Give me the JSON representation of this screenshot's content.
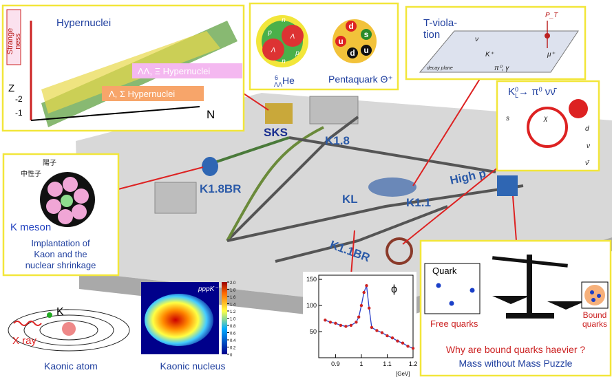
{
  "hypernuclei": {
    "title": "Hypernuclei",
    "axis_y": [
      "Strange",
      "ness"
    ],
    "labels": [
      "ΛΛ, Ξ Hypernuclei",
      "Λ, Σ Hypernuclei"
    ],
    "axis_z": "Z",
    "axis_n": "N",
    "ticks": [
      -1,
      -2
    ]
  },
  "nuclei": {
    "helium": {
      "mass": 6,
      "sub": "ΛΛ",
      "symbol": "He"
    },
    "helium_parts": [
      "p",
      "n",
      "Λ",
      "Λ",
      "p",
      "n"
    ],
    "pentaquark": "Pentaquark Θ⁺",
    "pentaquark_parts": [
      "d",
      "s",
      "u",
      "d",
      "u"
    ]
  },
  "t_violation": {
    "title": [
      "T-viola-",
      "tion"
    ],
    "labels": [
      "P_T",
      "ν",
      "K⁺",
      "μ⁺",
      "π⁰, γ",
      "decay plane"
    ]
  },
  "kl_decay": {
    "formula": [
      "K",
      "0",
      "L",
      "→ π",
      "0",
      " νν̄"
    ],
    "labels": [
      "s",
      "d",
      "ν",
      "ν̄",
      "χ"
    ]
  },
  "facility": {
    "labels": [
      "SKS",
      "K1.8",
      "K1.8BR",
      "KL",
      "K1.1",
      "High p",
      "K1.1BR"
    ]
  },
  "k_meson": {
    "labels": [
      "陽子",
      "中性子"
    ],
    "title": "K meson",
    "caption": [
      "Implantation of",
      "Kaon and the",
      "nuclear shrinkage"
    ]
  },
  "kaonic_atom": {
    "kaon": "K⁻",
    "xray": "X ray",
    "caption": "Kaonic atom"
  },
  "kaonic_nucleus": {
    "title": "pppK⁻",
    "caption": "Kaonic nucleus",
    "colorbar_ticks": [
      {
        "value": 2,
        "label": "2.0"
      },
      1.8,
      1.6,
      1.4,
      1.2,
      {
        "value": 1,
        "label": "1.0"
      },
      0.8,
      0.6,
      0.4,
      0.2,
      0
    ]
  },
  "phi_plot": {
    "type": "scatter",
    "label": "ϕ",
    "unit": "[GeV]",
    "xlim": [
      0.835,
      1.2
    ],
    "ylim": [
      0,
      158
    ],
    "xticks": [
      0.9,
      1,
      1.1,
      1.2
    ],
    "yticks": [
      50,
      100,
      150
    ],
    "x": [
      0.86,
      0.88,
      0.9,
      0.92,
      0.94,
      0.96,
      0.98,
      0.99,
      1.0,
      1.01,
      1.02,
      1.03,
      1.04,
      1.06,
      1.08,
      1.1,
      1.12,
      1.14,
      1.16,
      1.18,
      1.2
    ],
    "values": [
      72,
      68,
      66,
      62,
      60,
      62,
      68,
      78,
      100,
      125,
      138,
      95,
      58,
      52,
      48,
      42,
      38,
      32,
      28,
      22,
      18
    ],
    "color": "#cc2222"
  },
  "mass_puzzle": {
    "quark": "Quark",
    "free": "Free quarks",
    "bound": [
      "Bound",
      "quarks"
    ],
    "question": "Why are bound quarks haevier ?",
    "subtitle": "Mass without Mass Puzzle"
  }
}
